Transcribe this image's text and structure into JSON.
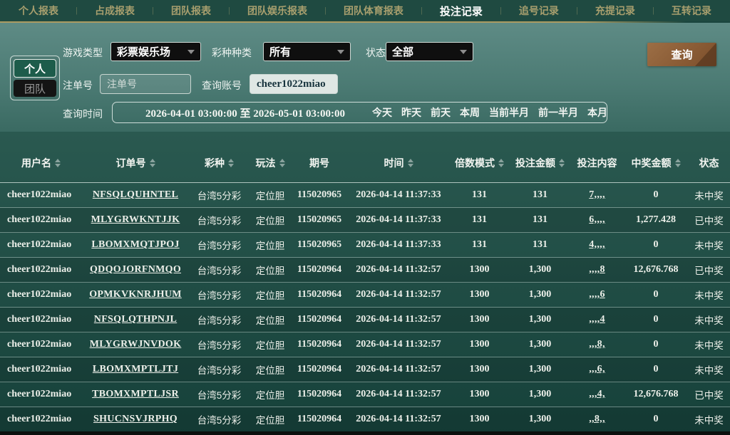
{
  "nav": {
    "tabs": [
      {
        "label": "个人报表",
        "active": false
      },
      {
        "label": "占成报表",
        "active": false
      },
      {
        "label": "团队报表",
        "active": false
      },
      {
        "label": "团队娱乐报表",
        "active": false
      },
      {
        "label": "团队体育报表",
        "active": false
      },
      {
        "label": "投注记录",
        "active": true
      },
      {
        "label": "追号记录",
        "active": false
      },
      {
        "label": "充提记录",
        "active": false
      },
      {
        "label": "互转记录",
        "active": false
      }
    ]
  },
  "filters": {
    "scope_personal": "个人",
    "scope_team": "团队",
    "game_type_label": "游戏类型",
    "game_type_value": "彩票娱乐场",
    "lottery_category_label": "彩种种类",
    "lottery_category_value": "所有",
    "status_label": "状态",
    "status_value": "全部",
    "order_no_label": "注单号",
    "order_no_placeholder": "注单号",
    "account_label": "查询账号",
    "account_value": "cheer1022miao",
    "time_label": "查询时间",
    "time_value": "2026-04-01 03:00:00 至 2026-05-01 03:00:00",
    "quick_ranges": [
      "今天",
      "昨天",
      "前天",
      "本周",
      "当前半月",
      "前一半月",
      "本月"
    ],
    "search_button": "查询"
  },
  "table": {
    "columns": [
      {
        "label": "用户名",
        "sortable": true
      },
      {
        "label": "订单号",
        "sortable": true
      },
      {
        "label": "彩种",
        "sortable": true
      },
      {
        "label": "玩法",
        "sortable": true
      },
      {
        "label": "期号",
        "sortable": false
      },
      {
        "label": "时间",
        "sortable": true
      },
      {
        "label": "倍数模式",
        "sortable": true
      },
      {
        "label": "投注金额",
        "sortable": true
      },
      {
        "label": "投注内容",
        "sortable": false
      },
      {
        "label": "中奖金额",
        "sortable": true
      },
      {
        "label": "状态",
        "sortable": false
      }
    ],
    "rows": [
      {
        "username": "cheer1022miao",
        "order_no": "NFSQLQUHNTEL",
        "lottery": "台湾5分彩",
        "play": "定位胆",
        "issue": "115020965",
        "time": "2026-04-14 11:37:33",
        "multiple": "131",
        "amount": "131",
        "content": "7,,,,",
        "win": "0",
        "status": "未中奖"
      },
      {
        "username": "cheer1022miao",
        "order_no": "MLYGRWKNTJJK",
        "lottery": "台湾5分彩",
        "play": "定位胆",
        "issue": "115020965",
        "time": "2026-04-14 11:37:33",
        "multiple": "131",
        "amount": "131",
        "content": "6,,,,",
        "win": "1,277.428",
        "status": "已中奖"
      },
      {
        "username": "cheer1022miao",
        "order_no": "LBOMXMQTJPOJ",
        "lottery": "台湾5分彩",
        "play": "定位胆",
        "issue": "115020965",
        "time": "2026-04-14 11:37:33",
        "multiple": "131",
        "amount": "131",
        "content": "4,,,,",
        "win": "0",
        "status": "未中奖"
      },
      {
        "username": "cheer1022miao",
        "order_no": "QDQOJORFNMQO",
        "lottery": "台湾5分彩",
        "play": "定位胆",
        "issue": "115020964",
        "time": "2026-04-14 11:32:57",
        "multiple": "1300",
        "amount": "1,300",
        "content": ",,,,8",
        "win": "12,676.768",
        "status": "已中奖"
      },
      {
        "username": "cheer1022miao",
        "order_no": "OPMKVKNRJHUM",
        "lottery": "台湾5分彩",
        "play": "定位胆",
        "issue": "115020964",
        "time": "2026-04-14 11:32:57",
        "multiple": "1300",
        "amount": "1,300",
        "content": ",,,,6",
        "win": "0",
        "status": "未中奖"
      },
      {
        "username": "cheer1022miao",
        "order_no": "NFSQLQTHPNJL",
        "lottery": "台湾5分彩",
        "play": "定位胆",
        "issue": "115020964",
        "time": "2026-04-14 11:32:57",
        "multiple": "1300",
        "amount": "1,300",
        "content": ",,,,4",
        "win": "0",
        "status": "未中奖"
      },
      {
        "username": "cheer1022miao",
        "order_no": "MLYGRWJNVDOK",
        "lottery": "台湾5分彩",
        "play": "定位胆",
        "issue": "115020964",
        "time": "2026-04-14 11:32:57",
        "multiple": "1300",
        "amount": "1,300",
        "content": ",,,8,",
        "win": "0",
        "status": "未中奖"
      },
      {
        "username": "cheer1022miao",
        "order_no": "LBOMXMPTLJTJ",
        "lottery": "台湾5分彩",
        "play": "定位胆",
        "issue": "115020964",
        "time": "2026-04-14 11:32:57",
        "multiple": "1300",
        "amount": "1,300",
        "content": ",,,6,",
        "win": "0",
        "status": "未中奖"
      },
      {
        "username": "cheer1022miao",
        "order_no": "TBOMXMPTLJSR",
        "lottery": "台湾5分彩",
        "play": "定位胆",
        "issue": "115020964",
        "time": "2026-04-14 11:32:57",
        "multiple": "1300",
        "amount": "1,300",
        "content": ",,,4,",
        "win": "12,676.768",
        "status": "已中奖"
      },
      {
        "username": "cheer1022miao",
        "order_no": "SHUCNSVJRPHQ",
        "lottery": "台湾5分彩",
        "play": "定位胆",
        "issue": "115020964",
        "time": "2026-04-14 11:32:57",
        "multiple": "1300",
        "amount": "1,300",
        "content": ",,8,,",
        "win": "0",
        "status": "未中奖"
      }
    ]
  },
  "colors": {
    "accent_gold": "#ab9b62",
    "nav_bg": "#1f4a41",
    "panel_teal": "#4c7b74",
    "table_green": "#1d4a42",
    "search_button_brown": "#8a5a38",
    "select_bg": "#0f0f0f"
  }
}
